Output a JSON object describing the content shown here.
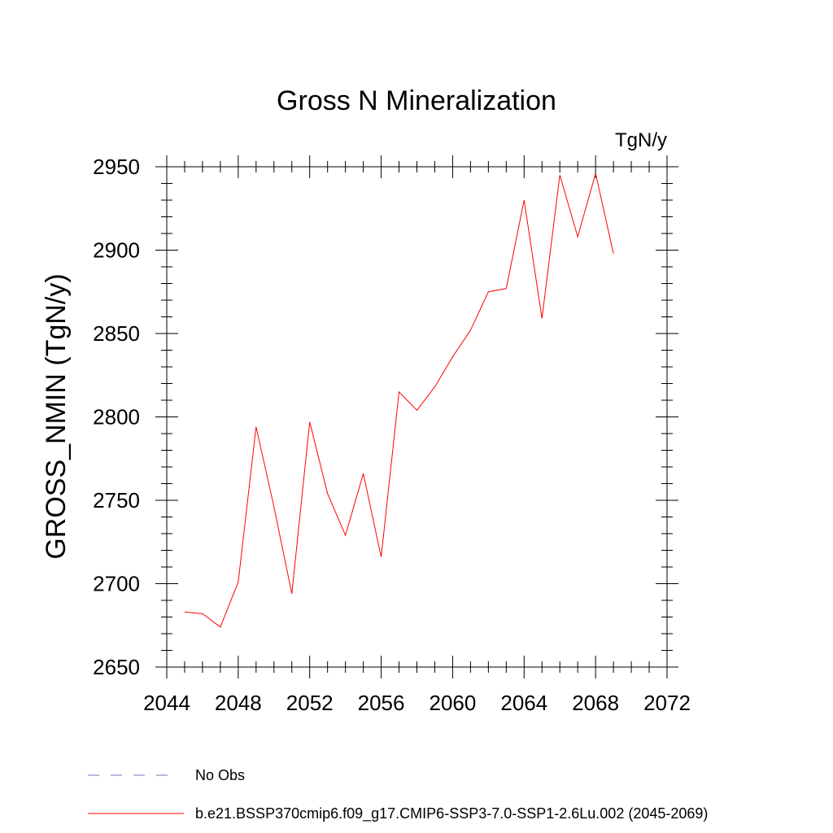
{
  "chart_data": {
    "type": "line",
    "title": "Gross N Mineralization",
    "units_label": "TgN/y",
    "ylabel": "GROSS_NMIN  (TgN/y)",
    "xlabel": "",
    "xlim": [
      2044,
      2072
    ],
    "ylim": [
      2650,
      2950
    ],
    "x_ticks": [
      2044,
      2048,
      2052,
      2056,
      2060,
      2064,
      2068,
      2072
    ],
    "y_ticks": [
      2650,
      2700,
      2750,
      2800,
      2850,
      2900,
      2950
    ],
    "x_minor_step": 1,
    "y_minor_step": 10,
    "grid": false,
    "legend_position": "bottom-left",
    "series": [
      {
        "name": "b.e21.BSSP370cmip6.f09_g17.CMIP6-SSP3-7.0-SSP1-2.6Lu.002 (2045-2069)",
        "color": "#ff0000",
        "style": "solid",
        "x": [
          2045,
          2046,
          2047,
          2048,
          2049,
          2050,
          2051,
          2052,
          2053,
          2054,
          2055,
          2056,
          2057,
          2058,
          2059,
          2060,
          2061,
          2062,
          2063,
          2064,
          2065,
          2066,
          2067,
          2068,
          2069
        ],
        "y": [
          2683,
          2682,
          2674,
          2701,
          2794,
          2746,
          2694,
          2797,
          2754,
          2729,
          2766,
          2716,
          2815,
          2804,
          2818,
          2836,
          2852,
          2875,
          2877,
          2930,
          2859,
          2945,
          2908,
          2946,
          2898
        ]
      }
    ],
    "legend": [
      {
        "label": "No Obs",
        "color": "#7a6fb5",
        "style": "dashed"
      },
      {
        "label": "b.e21.BSSP370cmip6.f09_g17.CMIP6-SSP3-7.0-SSP1-2.6Lu.002 (2045-2069)",
        "color": "#ff0000",
        "style": "solid"
      }
    ]
  }
}
